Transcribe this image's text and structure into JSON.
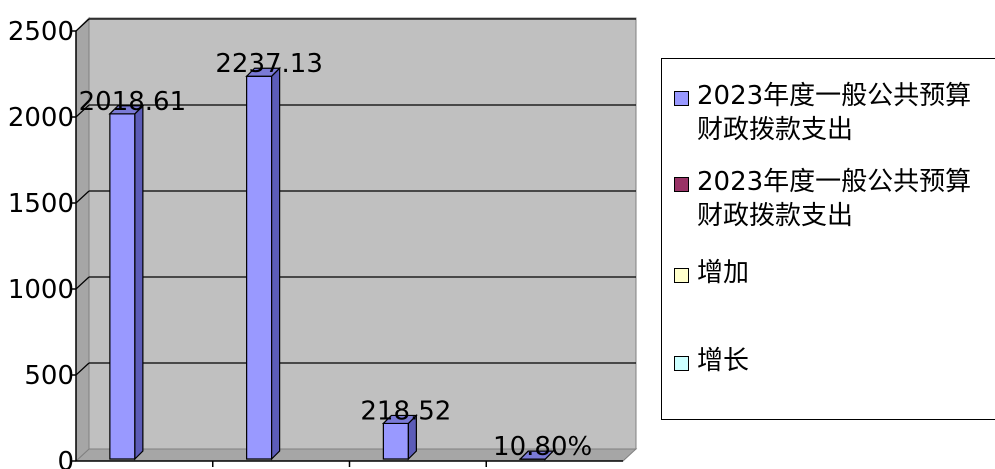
{
  "chart_data": {
    "type": "bar",
    "ylim": [
      0,
      2500
    ],
    "yticks": [
      "0",
      "500",
      "1000",
      "1500",
      "2000",
      "2500"
    ],
    "grid": true,
    "legend_position": "right",
    "bar_color": "#9999ff",
    "values": [
      2018.61,
      2237.13,
      218.52,
      10.8
    ],
    "data_labels": [
      "2018.61",
      "2237.13",
      "218.52",
      "10.80%"
    ],
    "series": [
      {
        "name": "2023年度一般公共预算财政拨款支出",
        "color": "#9999ff"
      },
      {
        "name": "2023年度一般公共预算财政拨款支出",
        "color": "#993366"
      },
      {
        "name": "增加",
        "color": "#ffffcc"
      },
      {
        "name": "增长",
        "color": "#ccffff"
      }
    ]
  }
}
